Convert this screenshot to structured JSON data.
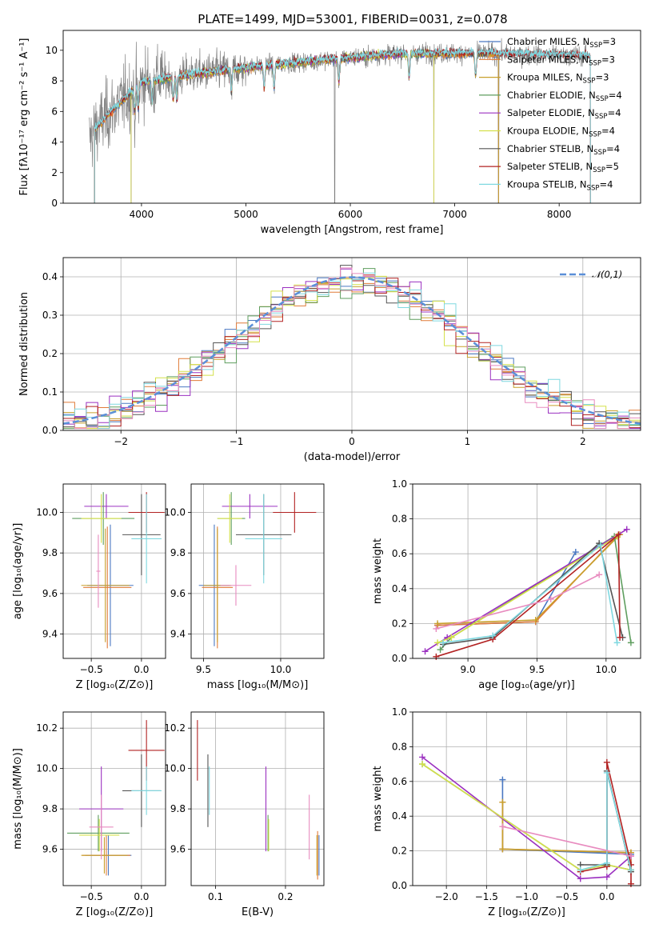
{
  "title": "PLATE=1499, MJD=53001, FIBERID=0031, z=0.078",
  "chart_data": [
    {
      "id": "spectrum",
      "type": "line",
      "xlabel": "wavelength [Angstrom, rest frame]",
      "ylabel": "Flux [fλ10⁻¹⁷ erg cm⁻² s⁻¹ A⁻¹]",
      "xlim": [
        3250,
        8780
      ],
      "ylim": [
        0,
        11.3
      ],
      "xticks": [
        4000,
        5000,
        6000,
        7000,
        8000
      ],
      "yticks": [
        0,
        2,
        4,
        6,
        8,
        10
      ],
      "grid": false,
      "legend_position": "right",
      "data_series": {
        "name": "",
        "color": "#808080",
        "wavelength_range": [
          3500,
          8300
        ]
      },
      "series": [
        {
          "name": "Chabrier MILES, N",
          "sub": "SSP",
          "suffix": "=3",
          "color": "#4a78c2",
          "range": [
            3550,
            7420
          ]
        },
        {
          "name": "Salpeter MILES, N",
          "sub": "SSP",
          "suffix": "=3",
          "color": "#e07b39",
          "range": [
            3550,
            7420
          ]
        },
        {
          "name": "Kroupa MILES, N",
          "sub": "SSP",
          "suffix": "=3",
          "color": "#c8a02c",
          "range": [
            3550,
            7420
          ]
        },
        {
          "name": "Chabrier ELODIE, N",
          "sub": "SSP",
          "suffix": "=4",
          "color": "#5f9e5f",
          "range": [
            3900,
            6800
          ]
        },
        {
          "name": "Salpeter ELODIE, N",
          "sub": "SSP",
          "suffix": "=4",
          "color": "#9b30c0",
          "range": [
            3900,
            6800
          ]
        },
        {
          "name": "Kroupa ELODIE, N",
          "sub": "SSP",
          "suffix": "=4",
          "color": "#d4e04a",
          "range": [
            3900,
            6800
          ]
        },
        {
          "name": "Chabrier STELIB, N",
          "sub": "SSP",
          "suffix": "=4",
          "color": "#555555",
          "range": [
            3550,
            8300
          ]
        },
        {
          "name": "Salpeter STELIB, N",
          "sub": "SSP",
          "suffix": "=5",
          "color": "#b22222",
          "range": [
            3550,
            8300
          ]
        },
        {
          "name": "Kroupa STELIB, N",
          "sub": "SSP",
          "suffix": "=4",
          "color": "#7fd8e0",
          "range": [
            3550,
            8300
          ]
        }
      ]
    },
    {
      "id": "residuals",
      "type": "histogram",
      "xlabel": "(data-model)/error",
      "ylabel": "Normed distribution",
      "xlim": [
        -2.5,
        2.5
      ],
      "ylim": [
        0,
        0.45
      ],
      "xticks": [
        -2,
        -1,
        0,
        1,
        2
      ],
      "yticks": [
        0.0,
        0.1,
        0.2,
        0.3,
        0.4
      ],
      "grid": true,
      "bin_width": 0.1,
      "reference_curve": {
        "name": "𝒩(0,1)",
        "mean": 0,
        "sigma": 1,
        "color": "#5b8fd8",
        "style": "dashed"
      },
      "legend_position": "top-right"
    },
    {
      "id": "age_vs_Z",
      "type": "errorbar",
      "xlabel": "Z [log₁₀(Z/Z⊙)]",
      "ylabel": "age  [log₁₀(age/yr)]",
      "xlim": [
        -0.78,
        0.24
      ],
      "ylim": [
        9.28,
        10.14
      ],
      "xticks": [
        -0.5,
        0.0
      ],
      "yticks": [
        9.4,
        9.6,
        9.8,
        10.0
      ],
      "grid": true,
      "points": [
        {
          "x": -0.31,
          "xerr": 0.23,
          "y": 9.64,
          "yerr": 0.3,
          "color": "#4a78c2"
        },
        {
          "x": -0.34,
          "xerr": 0.24,
          "y": 9.63,
          "yerr": 0.3,
          "color": "#e07b39"
        },
        {
          "x": -0.36,
          "xerr": 0.24,
          "y": 9.64,
          "yerr": 0.28,
          "color": "#c8a02c"
        },
        {
          "x": -0.38,
          "xerr": 0.31,
          "y": 9.97,
          "yerr": 0.13,
          "color": "#5f9e5f"
        },
        {
          "x": -0.35,
          "xerr": 0.22,
          "y": 10.03,
          "yerr": 0.06,
          "color": "#9b30c0"
        },
        {
          "x": -0.4,
          "xerr": 0.2,
          "y": 9.97,
          "yerr": 0.12,
          "color": "#d4e04a"
        },
        {
          "x": 0.0,
          "xerr": 0.19,
          "y": 9.89,
          "yerr": 0.2,
          "color": "#555555"
        },
        {
          "x": 0.05,
          "xerr": 0.18,
          "y": 10.0,
          "yerr": 0.1,
          "color": "#b22222"
        },
        {
          "x": 0.05,
          "xerr": 0.15,
          "y": 9.87,
          "yerr": 0.22,
          "color": "#7fd8e0"
        },
        {
          "x": -0.43,
          "xerr": 0.02,
          "y": 9.71,
          "yerr": 0.18,
          "color": "#e88bbf"
        }
      ]
    },
    {
      "id": "age_vs_mass",
      "type": "errorbar",
      "xlabel": "mass [log₁₀(M/M⊙)]",
      "ylabel": "",
      "xlim": [
        9.42,
        10.28
      ],
      "ylim": [
        9.28,
        10.14
      ],
      "xticks": [
        9.5,
        10.0
      ],
      "yticks": [
        9.4,
        9.6,
        9.8,
        10.0
      ],
      "grid": true,
      "points": [
        {
          "x": 9.57,
          "xerr": 0.1,
          "y": 9.64,
          "yerr": 0.3,
          "color": "#4a78c2"
        },
        {
          "x": 9.59,
          "xerr": 0.1,
          "y": 9.63,
          "yerr": 0.3,
          "color": "#e07b39"
        },
        {
          "x": 9.59,
          "xerr": 0.09,
          "y": 9.64,
          "yerr": 0.28,
          "color": "#c8a02c"
        },
        {
          "x": 9.68,
          "xerr": 0.09,
          "y": 9.97,
          "yerr": 0.13,
          "color": "#5f9e5f"
        },
        {
          "x": 9.8,
          "xerr": 0.18,
          "y": 10.03,
          "yerr": 0.06,
          "color": "#9b30c0"
        },
        {
          "x": 9.67,
          "xerr": 0.08,
          "y": 9.97,
          "yerr": 0.12,
          "color": "#d4e04a"
        },
        {
          "x": 9.89,
          "xerr": 0.18,
          "y": 9.89,
          "yerr": 0.2,
          "color": "#555555"
        },
        {
          "x": 10.09,
          "xerr": 0.14,
          "y": 10.0,
          "yerr": 0.1,
          "color": "#b22222"
        },
        {
          "x": 9.89,
          "xerr": 0.12,
          "y": 9.87,
          "yerr": 0.22,
          "color": "#7fd8e0"
        },
        {
          "x": 9.71,
          "xerr": 0.1,
          "y": 9.64,
          "yerr": 0.1,
          "color": "#e88bbf"
        }
      ]
    },
    {
      "id": "mass_weight_vs_age",
      "type": "line",
      "xlabel": "age  [log₁₀(age/yr)]",
      "ylabel": "mass weight",
      "xlim": [
        8.6,
        10.25
      ],
      "ylim": [
        0.0,
        1.0
      ],
      "xticks": [
        9.0,
        9.5,
        10.0
      ],
      "yticks": [
        0.0,
        0.2,
        0.4,
        0.6,
        0.8,
        1.0
      ],
      "grid": true,
      "series": [
        {
          "color": "#4a78c2",
          "x": [
            8.78,
            9.49,
            9.78
          ],
          "y": [
            0.19,
            0.21,
            0.61
          ]
        },
        {
          "color": "#e07b39",
          "x": [
            8.78,
            9.49,
            10.08
          ],
          "y": [
            0.19,
            0.21,
            0.7
          ]
        },
        {
          "color": "#c8a02c",
          "x": [
            8.78,
            9.49,
            10.1
          ],
          "y": [
            0.2,
            0.22,
            0.71
          ]
        },
        {
          "color": "#5f9e5f",
          "x": [
            8.8,
            8.88,
            10.06,
            10.18
          ],
          "y": [
            0.05,
            0.12,
            0.7,
            0.09
          ]
        },
        {
          "color": "#9b30c0",
          "x": [
            8.69,
            8.85,
            10.15
          ],
          "y": [
            0.04,
            0.12,
            0.74
          ]
        },
        {
          "color": "#d4e04a",
          "x": [
            8.78,
            8.88,
            10.08
          ],
          "y": [
            0.09,
            0.12,
            0.7
          ]
        },
        {
          "color": "#555555",
          "x": [
            8.82,
            9.18,
            9.95,
            10.12
          ],
          "y": [
            0.08,
            0.12,
            0.66,
            0.12
          ]
        },
        {
          "color": "#b22222",
          "x": [
            8.77,
            9.18,
            10.09,
            10.1
          ],
          "y": [
            0.01,
            0.11,
            0.71,
            0.12
          ]
        },
        {
          "color": "#7fd8e0",
          "x": [
            8.82,
            9.18,
            9.96,
            10.08
          ],
          "y": [
            0.09,
            0.13,
            0.65,
            0.09
          ]
        },
        {
          "color": "#e88bbf",
          "x": [
            8.77,
            9.6,
            9.95
          ],
          "y": [
            0.17,
            0.34,
            0.48
          ]
        }
      ]
    },
    {
      "id": "mass_vs_Z",
      "type": "errorbar",
      "xlabel": "Z [log₁₀(Z/Z⊙)]",
      "ylabel": "mass [log₁₀(M/M⊙)]",
      "xlim": [
        -0.78,
        0.24
      ],
      "ylim": [
        9.42,
        10.28
      ],
      "xticks": [
        -0.5,
        0.0
      ],
      "yticks": [
        9.6,
        9.8,
        10.0,
        10.2
      ],
      "grid": true,
      "points": [
        {
          "x": -0.33,
          "xerr": 0.23,
          "y": 9.57,
          "yerr": 0.1,
          "color": "#4a78c2"
        },
        {
          "x": -0.35,
          "xerr": 0.24,
          "y": 9.57,
          "yerr": 0.1,
          "color": "#e07b39"
        },
        {
          "x": -0.37,
          "xerr": 0.23,
          "y": 9.57,
          "yerr": 0.09,
          "color": "#c8a02c"
        },
        {
          "x": -0.43,
          "xerr": 0.31,
          "y": 9.68,
          "yerr": 0.09,
          "color": "#5f9e5f"
        },
        {
          "x": -0.4,
          "xerr": 0.22,
          "y": 9.8,
          "yerr": 0.21,
          "color": "#9b30c0"
        },
        {
          "x": -0.42,
          "xerr": 0.2,
          "y": 9.67,
          "yerr": 0.08,
          "color": "#d4e04a"
        },
        {
          "x": 0.0,
          "xerr": 0.19,
          "y": 9.89,
          "yerr": 0.18,
          "color": "#555555"
        },
        {
          "x": 0.05,
          "xerr": 0.18,
          "y": 10.09,
          "yerr": 0.15,
          "color": "#b22222"
        },
        {
          "x": 0.05,
          "xerr": 0.15,
          "y": 9.89,
          "yerr": 0.12,
          "color": "#7fd8e0"
        },
        {
          "x": -0.4,
          "xerr": 0.12,
          "y": 9.71,
          "yerr": 0.16,
          "color": "#e88bbf"
        }
      ]
    },
    {
      "id": "mass_vs_EBV",
      "type": "errorbar",
      "xlabel": "E(B-V)",
      "ylabel": "",
      "xlim": [
        0.065,
        0.255
      ],
      "ylim": [
        9.42,
        10.28
      ],
      "xticks": [
        0.1,
        0.2
      ],
      "yticks": [
        9.6,
        9.8,
        10.0,
        10.2
      ],
      "grid": true,
      "points": [
        {
          "x": 0.248,
          "y": 9.57,
          "yerr": 0.1,
          "color": "#4a78c2"
        },
        {
          "x": 0.246,
          "y": 9.57,
          "yerr": 0.12,
          "color": "#e07b39"
        },
        {
          "x": 0.245,
          "y": 9.57,
          "yerr": 0.1,
          "color": "#c8a02c"
        },
        {
          "x": 0.175,
          "y": 9.68,
          "yerr": 0.09,
          "color": "#5f9e5f"
        },
        {
          "x": 0.172,
          "y": 9.8,
          "yerr": 0.21,
          "color": "#9b30c0"
        },
        {
          "x": 0.176,
          "y": 9.67,
          "yerr": 0.08,
          "color": "#d4e04a"
        },
        {
          "x": 0.089,
          "y": 9.89,
          "yerr": 0.18,
          "color": "#555555"
        },
        {
          "x": 0.074,
          "y": 10.09,
          "yerr": 0.15,
          "color": "#b22222"
        },
        {
          "x": 0.091,
          "y": 9.89,
          "yerr": 0.12,
          "color": "#7fd8e0"
        },
        {
          "x": 0.234,
          "y": 9.71,
          "yerr": 0.16,
          "color": "#e88bbf"
        }
      ]
    },
    {
      "id": "mass_weight_vs_Z",
      "type": "line",
      "xlabel": "Z [log₁₀(Z/Z⊙)]",
      "ylabel": "mass weight",
      "xlim": [
        -2.42,
        0.42
      ],
      "ylim": [
        0.0,
        1.0
      ],
      "xticks": [
        -2.0,
        -1.5,
        -1.0,
        -0.5,
        0.0
      ],
      "yticks": [
        0.0,
        0.2,
        0.4,
        0.6,
        0.8,
        1.0
      ],
      "grid": true,
      "series": [
        {
          "color": "#4a78c2",
          "x": [
            -1.3,
            -1.3,
            0.3,
            0.3
          ],
          "y": [
            0.61,
            0.21,
            0.18,
            0.09
          ]
        },
        {
          "color": "#e07b39",
          "x": [
            -1.3,
            -1.3,
            0.3,
            0.3
          ],
          "y": [
            0.48,
            0.21,
            0.19,
            0.09
          ]
        },
        {
          "color": "#c8a02c",
          "x": [
            -1.3,
            -1.3,
            0.3
          ],
          "y": [
            0.48,
            0.21,
            0.19
          ]
        },
        {
          "color": "#5f9e5f",
          "x": [
            -2.3,
            -0.33,
            0.0,
            0.3
          ],
          "y": [
            0.7,
            0.09,
            0.12,
            0.09
          ]
        },
        {
          "color": "#9b30c0",
          "x": [
            -2.3,
            -0.33,
            0.0,
            0.3
          ],
          "y": [
            0.74,
            0.04,
            0.05,
            0.17
          ]
        },
        {
          "color": "#d4e04a",
          "x": [
            -2.3,
            -0.33,
            0.0,
            0.3
          ],
          "y": [
            0.7,
            0.09,
            0.12,
            0.09
          ]
        },
        {
          "color": "#555555",
          "x": [
            -0.33,
            0.0,
            0.0,
            0.3
          ],
          "y": [
            0.12,
            0.12,
            0.66,
            0.08
          ]
        },
        {
          "color": "#b22222",
          "x": [
            -0.33,
            0.0,
            0.0,
            0.3,
            0.3
          ],
          "y": [
            0.08,
            0.11,
            0.71,
            0.12,
            0.01
          ]
        },
        {
          "color": "#7fd8e0",
          "x": [
            -0.33,
            0.0,
            0.0,
            0.3
          ],
          "y": [
            0.09,
            0.13,
            0.65,
            0.09
          ]
        },
        {
          "color": "#e88bbf",
          "x": [
            -1.3,
            0.3
          ],
          "y": [
            0.34,
            0.17
          ]
        }
      ]
    }
  ]
}
